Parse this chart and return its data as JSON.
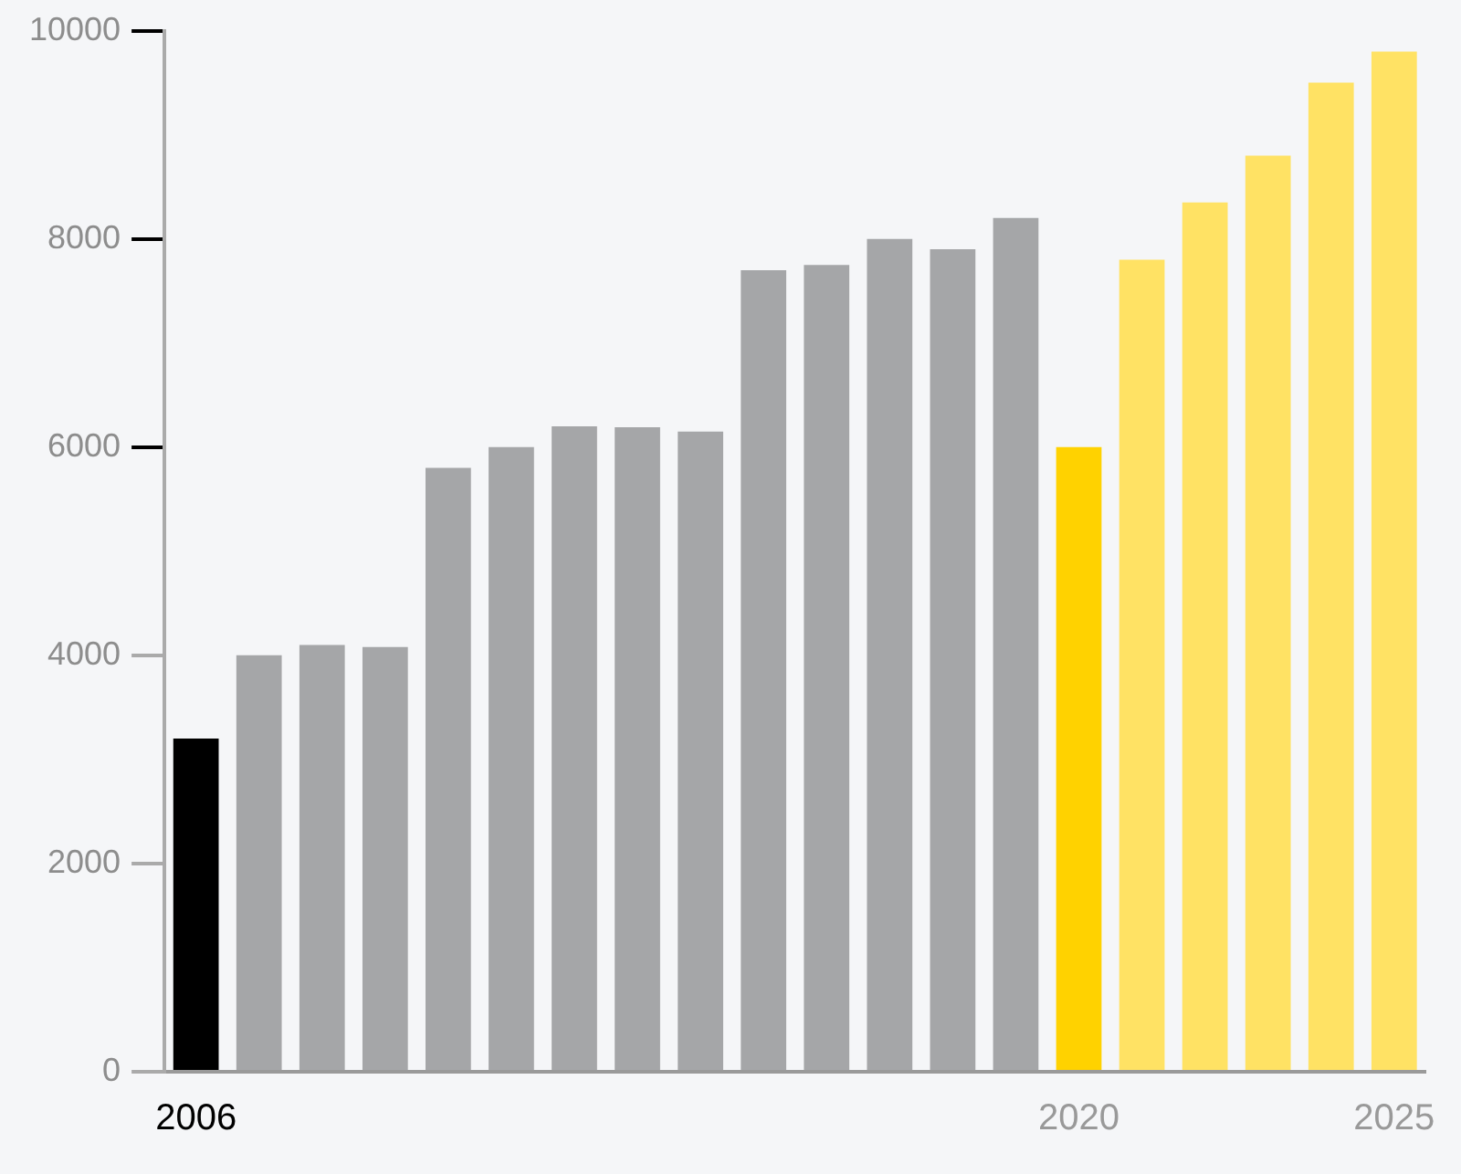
{
  "chart_data": {
    "type": "bar",
    "categories": [
      "2006",
      null,
      null,
      null,
      null,
      null,
      null,
      null,
      null,
      null,
      null,
      null,
      null,
      null,
      "2020",
      null,
      null,
      null,
      null,
      "2025"
    ],
    "values": [
      3200,
      4000,
      4100,
      4080,
      5800,
      6000,
      6200,
      6190,
      6150,
      7700,
      7750,
      8000,
      7900,
      8200,
      6000,
      7800,
      8350,
      8800,
      9500,
      9800
    ],
    "colors": [
      "#000000",
      "#a5a6a8",
      "#a5a6a8",
      "#a5a6a8",
      "#a5a6a8",
      "#a5a6a8",
      "#a5a6a8",
      "#a5a6a8",
      "#a5a6a8",
      "#a5a6a8",
      "#a5a6a8",
      "#a5a6a8",
      "#a5a6a8",
      "#a5a6a8",
      "#ffd200",
      "#ffe264",
      "#ffe264",
      "#ffe264",
      "#ffe264",
      "#ffe264"
    ],
    "ylim": [
      0,
      10000
    ],
    "yticks": [
      0,
      2000,
      4000,
      6000,
      8000,
      10000
    ],
    "grid": false,
    "legend": false
  }
}
